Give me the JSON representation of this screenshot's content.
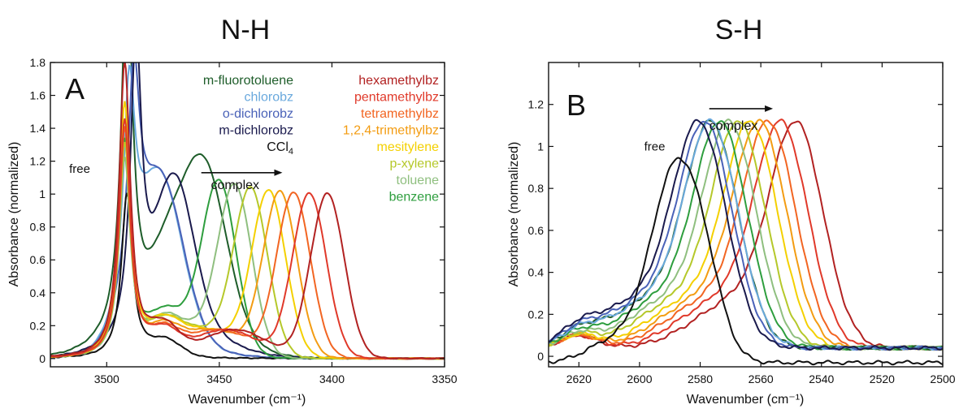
{
  "chart_data": [
    {
      "type": "line",
      "panel_label": "A",
      "title": "N-H",
      "xlabel": "Wavenumber (cm⁻¹)",
      "ylabel": "Absorbance (normalized)",
      "xlim": [
        3525,
        3350
      ],
      "ylim": [
        -0.05,
        1.8
      ],
      "x_reversed": true,
      "xticks": [
        3500,
        3450,
        3400,
        3350
      ],
      "yticks": [
        0,
        0.2,
        0.4,
        0.6,
        0.8,
        1,
        1.2,
        1.4,
        1.6,
        1.8
      ],
      "grid": false,
      "legend_position": "top (two text columns, no markers)",
      "annotations": [
        {
          "text": "free",
          "x": 3512,
          "y": 1.13
        },
        {
          "text": "complex",
          "x": 3443,
          "y": 1.03,
          "arrow": {
            "from": 3458,
            "to": 3422,
            "y": 1.13
          }
        }
      ],
      "series": [
        {
          "name": "m-fluorotoluene",
          "color": "#1e5d2a",
          "free_peak": 3491,
          "free_height": 2.2,
          "complex_peak": null,
          "tail": 0.35
        },
        {
          "name": "chlorobz",
          "color": "#6aa9dd",
          "free_peak": 3490,
          "free_height": 1.22,
          "complex_peak": null,
          "tail": 0.05
        },
        {
          "name": "o-dichlorobz",
          "color": "#4a62b8",
          "free_peak": 3488,
          "free_height": 1.2,
          "complex_peak": null,
          "tail": 0.05
        },
        {
          "name": "m-dichlorobz",
          "color": "#1a1a4d",
          "free_peak": 3487,
          "free_height": 1.75,
          "complex_peak": null,
          "tail": 0.2
        },
        {
          "name": "CCl",
          "name_subscript": "4",
          "color": "#111111",
          "free_peak": 3491,
          "free_height": 1.0,
          "complex_peak": null,
          "tail": 0.0
        },
        {
          "name": "hexamethylbz",
          "color": "#b22222",
          "free_peak": 3492,
          "free_height": 1.8,
          "complex_peak": 3402,
          "complex_height": 1.0
        },
        {
          "name": "pentamethylbz",
          "color": "#e0392a",
          "free_peak": 3492,
          "free_height": 1.45,
          "complex_peak": 3410,
          "complex_height": 1.0
        },
        {
          "name": "tetramethylbz",
          "color": "#f26522",
          "free_peak": 3492,
          "free_height": 1.4,
          "complex_peak": 3417,
          "complex_height": 1.0
        },
        {
          "name": "1,2,4-trimethylbz",
          "color": "#f39c12",
          "free_peak": 3492,
          "free_height": 1.4,
          "complex_peak": 3423,
          "complex_height": 1.0
        },
        {
          "name": "mesitylene",
          "color": "#f4d000",
          "free_peak": 3492,
          "free_height": 1.55,
          "complex_peak": 3428,
          "complex_height": 1.0
        },
        {
          "name": "p-xylene",
          "color": "#b5c82a",
          "free_peak": 3492,
          "free_height": 1.3,
          "complex_peak": 3436,
          "complex_height": 1.0
        },
        {
          "name": "toluene",
          "color": "#8fbf7f",
          "free_peak": 3492,
          "free_height": 1.2,
          "complex_peak": 3443,
          "complex_height": 1.0
        },
        {
          "name": "benzene",
          "color": "#2e9e3e",
          "free_peak": 3492,
          "free_height": 1.3,
          "complex_peak": 3450,
          "complex_height": 1.0
        }
      ]
    },
    {
      "type": "line",
      "panel_label": "B",
      "title": "S-H",
      "xlabel": "Wavenumber (cm⁻¹)",
      "ylabel": "Absorbance (normalized)",
      "xlim": [
        2630,
        2500
      ],
      "ylim": [
        -0.05,
        1.4
      ],
      "x_reversed": true,
      "xticks": [
        2620,
        2600,
        2580,
        2560,
        2540,
        2520,
        2500
      ],
      "yticks": [
        0,
        0.2,
        0.4,
        0.6,
        0.8,
        1,
        1.2
      ],
      "grid": false,
      "annotations": [
        {
          "text": "free",
          "x": 2595,
          "y": 0.98
        },
        {
          "text": "complex",
          "x": 2569,
          "y": 1.08,
          "arrow": {
            "from": 2577,
            "to": 2556,
            "y": 1.18
          }
        }
      ],
      "series": [
        {
          "name": "CCl4",
          "color": "#111111",
          "peak": 2588
        },
        {
          "name": "m-dichlorobz",
          "color": "#1a1a4d",
          "peak": 2580
        },
        {
          "name": "o-dichlorobz",
          "color": "#4a62b8",
          "peak": 2578
        },
        {
          "name": "chlorobz",
          "color": "#6aa9dd",
          "peak": 2576
        },
        {
          "name": "m-fluorotoluene",
          "color": "#1e5d2a",
          "peak": 2576
        },
        {
          "name": "benzene",
          "color": "#2e9e3e",
          "peak": 2573
        },
        {
          "name": "toluene",
          "color": "#8fbf7f",
          "peak": 2570
        },
        {
          "name": "p-xylene",
          "color": "#b5c82a",
          "peak": 2567
        },
        {
          "name": "mesitylene",
          "color": "#f4d000",
          "peak": 2563
        },
        {
          "name": "1,2,4-trimethylbz",
          "color": "#f39c12",
          "peak": 2560
        },
        {
          "name": "tetramethylbz",
          "color": "#f26522",
          "peak": 2557
        },
        {
          "name": "pentamethylbz",
          "color": "#e0392a",
          "peak": 2553
        },
        {
          "name": "hexamethylbz",
          "color": "#b22222",
          "peak": 2548
        }
      ]
    }
  ]
}
